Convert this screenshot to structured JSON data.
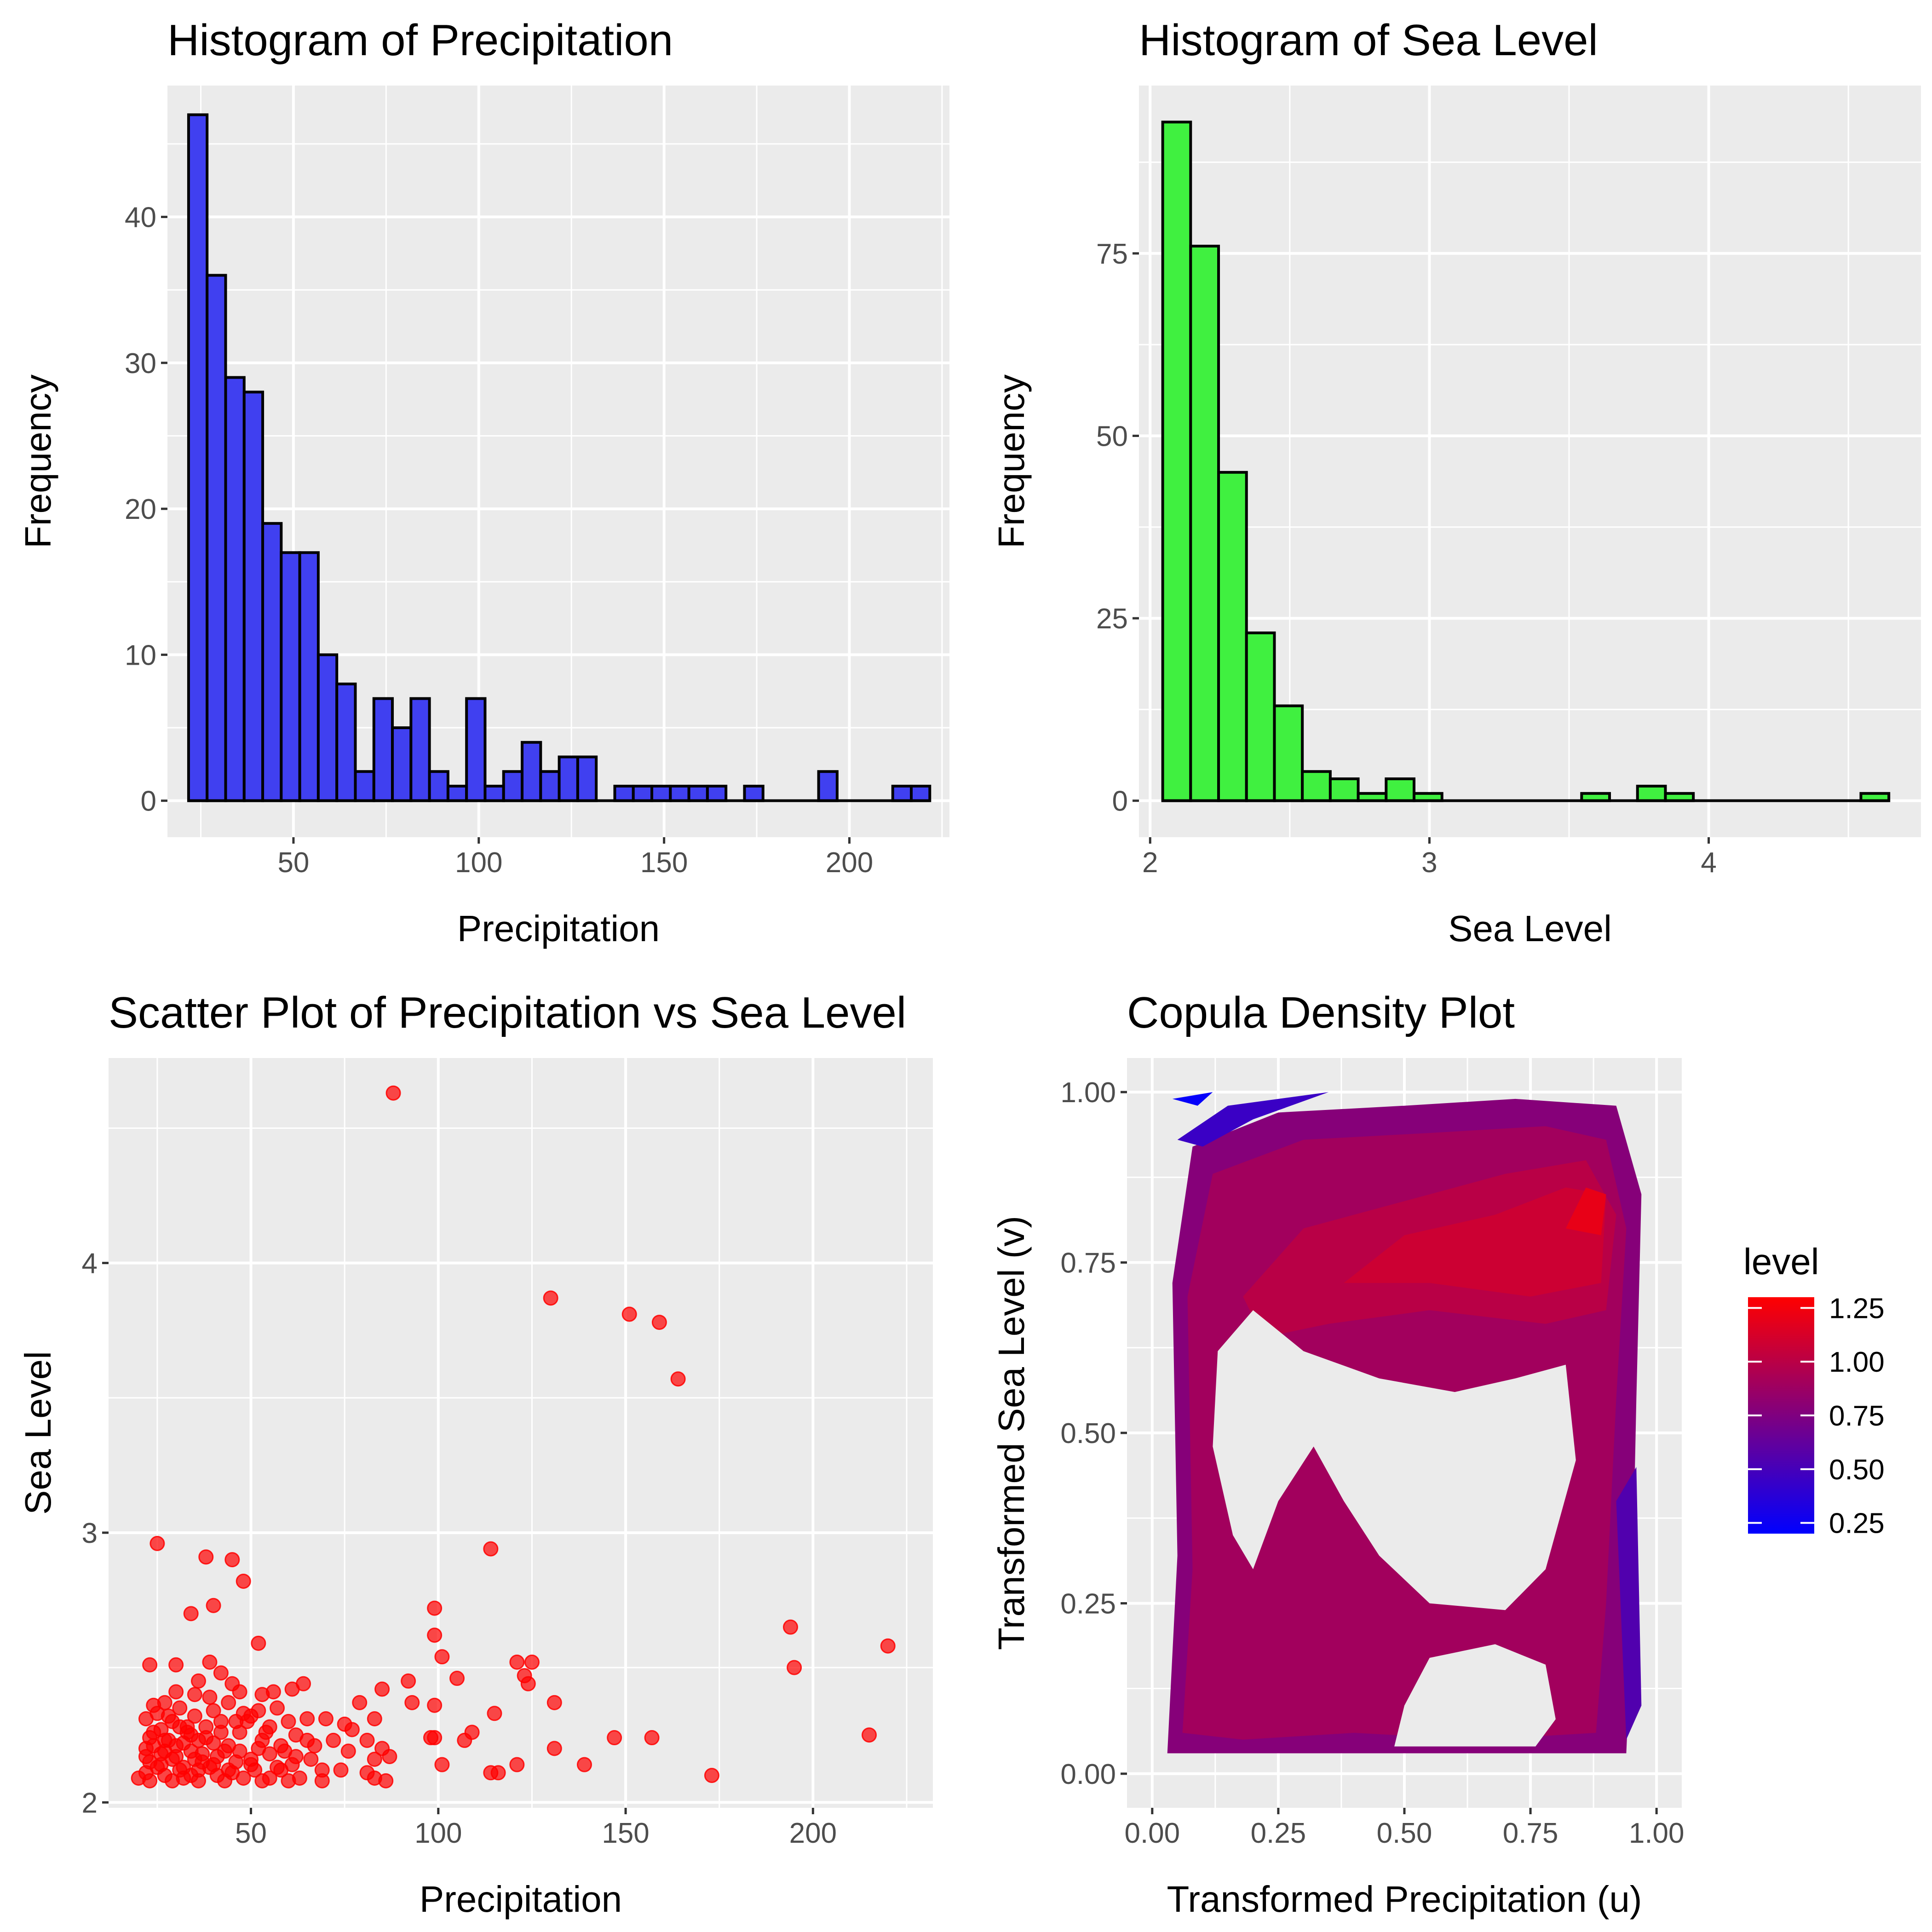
{
  "chart_data": [
    {
      "type": "bar",
      "title": "Histogram of Precipitation",
      "xlabel": "Precipitation",
      "ylabel": "Frequency",
      "fill": "#4040f0",
      "stroke": "#000000",
      "xlim": [
        16,
        227
      ],
      "ylim": [
        -2.5,
        49
      ],
      "x_ticks": [
        50,
        100,
        150,
        200
      ],
      "x_tick_labels": [
        "50",
        "100",
        "150",
        "200"
      ],
      "y_ticks": [
        0,
        10,
        20,
        30,
        40
      ],
      "y_tick_labels": [
        "0",
        "10",
        "20",
        "30",
        "40"
      ],
      "bin_start": 21.7,
      "bin_width": 5.0,
      "values": [
        47,
        36,
        29,
        28,
        19,
        17,
        17,
        10,
        8,
        2,
        7,
        5,
        7,
        2,
        1,
        7,
        1,
        2,
        4,
        2,
        3,
        3,
        0,
        1,
        1,
        1,
        1,
        1,
        1,
        0,
        1,
        0,
        0,
        0,
        2,
        0,
        0,
        0,
        1,
        1
      ]
    },
    {
      "type": "bar",
      "title": "Histogram of Sea Level",
      "xlabel": "Sea Level",
      "ylabel": "Frequency",
      "fill": "#40f040",
      "stroke": "#000000",
      "xlim": [
        1.96,
        4.76
      ],
      "ylim": [
        -5,
        98
      ],
      "x_ticks": [
        2,
        3,
        4
      ],
      "x_tick_labels": [
        "2",
        "3",
        "4"
      ],
      "y_ticks": [
        0,
        25,
        50,
        75
      ],
      "y_tick_labels": [
        "0",
        "25",
        "50",
        "75"
      ],
      "bin_start": 2.045,
      "bin_width": 0.1,
      "values": [
        93,
        76,
        45,
        23,
        13,
        4,
        3,
        1,
        3,
        1,
        0,
        0,
        0,
        0,
        0,
        1,
        0,
        2,
        1,
        0,
        0,
        0,
        0,
        0,
        0,
        1
      ]
    },
    {
      "type": "scatter",
      "title": "Scatter Plot of Precipitation vs Sea Level",
      "xlabel": "Precipitation",
      "ylabel": "Sea Level",
      "point_color": "#ff0000",
      "xlim": [
        12,
        232
      ],
      "ylim": [
        1.98,
        4.76
      ],
      "x_ticks": [
        50,
        100,
        150,
        200
      ],
      "x_tick_labels": [
        "50",
        "100",
        "150",
        "200"
      ],
      "y_ticks": [
        2,
        3,
        4
      ],
      "y_tick_labels": [
        "2",
        "3",
        "4"
      ],
      "points": [
        [
          88,
          4.63
        ],
        [
          130,
          3.87
        ],
        [
          151,
          3.81
        ],
        [
          159,
          3.78
        ],
        [
          164,
          3.57
        ],
        [
          25,
          2.96
        ],
        [
          114,
          2.94
        ],
        [
          38,
          2.91
        ],
        [
          45,
          2.9
        ],
        [
          48,
          2.82
        ],
        [
          40,
          2.73
        ],
        [
          99,
          2.72
        ],
        [
          34,
          2.7
        ],
        [
          194,
          2.65
        ],
        [
          99,
          2.62
        ],
        [
          220,
          2.58
        ],
        [
          52,
          2.59
        ],
        [
          101,
          2.54
        ],
        [
          23,
          2.51
        ],
        [
          30,
          2.51
        ],
        [
          39,
          2.52
        ],
        [
          121,
          2.52
        ],
        [
          125,
          2.52
        ],
        [
          195,
          2.5
        ],
        [
          42,
          2.48
        ],
        [
          123,
          2.47
        ],
        [
          92,
          2.45
        ],
        [
          105,
          2.46
        ],
        [
          36,
          2.45
        ],
        [
          45,
          2.44
        ],
        [
          64,
          2.44
        ],
        [
          124,
          2.44
        ],
        [
          85,
          2.42
        ],
        [
          30,
          2.41
        ],
        [
          47,
          2.41
        ],
        [
          56,
          2.41
        ],
        [
          61,
          2.42
        ],
        [
          35,
          2.4
        ],
        [
          39,
          2.39
        ],
        [
          53,
          2.4
        ],
        [
          24,
          2.36
        ],
        [
          27,
          2.37
        ],
        [
          44,
          2.37
        ],
        [
          79,
          2.37
        ],
        [
          93,
          2.37
        ],
        [
          131,
          2.37
        ],
        [
          99,
          2.36
        ],
        [
          57,
          2.35
        ],
        [
          25,
          2.33
        ],
        [
          31,
          2.35
        ],
        [
          40,
          2.34
        ],
        [
          48,
          2.33
        ],
        [
          52,
          2.34
        ],
        [
          115,
          2.33
        ],
        [
          35,
          2.32
        ],
        [
          50,
          2.32
        ],
        [
          65,
          2.31
        ],
        [
          70,
          2.31
        ],
        [
          83,
          2.31
        ],
        [
          22,
          2.31
        ],
        [
          29,
          2.3
        ],
        [
          42,
          2.3
        ],
        [
          46,
          2.3
        ],
        [
          60,
          2.3
        ],
        [
          75,
          2.29
        ],
        [
          31,
          2.28
        ],
        [
          38,
          2.28
        ],
        [
          55,
          2.28
        ],
        [
          77,
          2.27
        ],
        [
          109,
          2.26
        ],
        [
          26,
          2.27
        ],
        [
          33,
          2.26
        ],
        [
          47,
          2.26
        ],
        [
          62,
          2.25
        ],
        [
          98,
          2.24
        ],
        [
          99,
          2.24
        ],
        [
          147,
          2.24
        ],
        [
          157,
          2.24
        ],
        [
          215,
          2.25
        ],
        [
          23,
          2.24
        ],
        [
          28,
          2.23
        ],
        [
          36,
          2.23
        ],
        [
          53,
          2.23
        ],
        [
          72,
          2.23
        ],
        [
          81,
          2.23
        ],
        [
          107,
          2.23
        ],
        [
          40,
          2.22
        ],
        [
          24,
          2.21
        ],
        [
          32,
          2.22
        ],
        [
          44,
          2.21
        ],
        [
          58,
          2.21
        ],
        [
          67,
          2.21
        ],
        [
          85,
          2.2
        ],
        [
          131,
          2.2
        ],
        [
          27,
          2.19
        ],
        [
          34,
          2.19
        ],
        [
          47,
          2.19
        ],
        [
          52,
          2.2
        ],
        [
          59,
          2.19
        ],
        [
          76,
          2.19
        ],
        [
          87,
          2.17
        ],
        [
          22,
          2.17
        ],
        [
          30,
          2.17
        ],
        [
          41,
          2.17
        ],
        [
          55,
          2.18
        ],
        [
          66,
          2.16
        ],
        [
          83,
          2.16
        ],
        [
          23,
          2.15
        ],
        [
          29,
          2.16
        ],
        [
          37,
          2.15
        ],
        [
          46,
          2.15
        ],
        [
          50,
          2.14
        ],
        [
          61,
          2.14
        ],
        [
          101,
          2.14
        ],
        [
          121,
          2.14
        ],
        [
          139,
          2.14
        ],
        [
          25,
          2.13
        ],
        [
          32,
          2.13
        ],
        [
          39,
          2.13
        ],
        [
          44,
          2.12
        ],
        [
          51,
          2.12
        ],
        [
          58,
          2.12
        ],
        [
          69,
          2.12
        ],
        [
          74,
          2.12
        ],
        [
          81,
          2.11
        ],
        [
          114,
          2.11
        ],
        [
          116,
          2.11
        ],
        [
          173,
          2.1
        ],
        [
          22,
          2.11
        ],
        [
          27,
          2.1
        ],
        [
          34,
          2.1
        ],
        [
          41,
          2.1
        ],
        [
          48,
          2.09
        ],
        [
          55,
          2.09
        ],
        [
          63,
          2.09
        ],
        [
          83,
          2.09
        ],
        [
          23,
          2.08
        ],
        [
          29,
          2.08
        ],
        [
          36,
          2.08
        ],
        [
          43,
          2.08
        ],
        [
          53,
          2.08
        ],
        [
          60,
          2.08
        ],
        [
          69,
          2.08
        ],
        [
          86,
          2.08
        ],
        [
          31,
          2.12
        ],
        [
          26,
          2.14
        ],
        [
          35,
          2.16
        ],
        [
          43,
          2.19
        ],
        [
          38,
          2.24
        ],
        [
          28,
          2.32
        ],
        [
          33,
          2.28
        ],
        [
          24,
          2.26
        ],
        [
          37,
          2.18
        ],
        [
          45,
          2.11
        ],
        [
          40,
          2.14
        ],
        [
          30,
          2.21
        ],
        [
          26,
          2.18
        ],
        [
          34,
          2.25
        ],
        [
          50,
          2.16
        ],
        [
          57,
          2.13
        ],
        [
          65,
          2.23
        ],
        [
          20,
          2.09
        ],
        [
          22,
          2.2
        ],
        [
          27,
          2.23
        ],
        [
          32,
          2.09
        ],
        [
          36,
          2.12
        ],
        [
          42,
          2.26
        ],
        [
          49,
          2.3
        ],
        [
          54,
          2.26
        ],
        [
          62,
          2.17
        ]
      ]
    },
    {
      "type": "heatmap",
      "title": "Copula Density Plot",
      "xlabel": "Transformed Precipitation (u)",
      "ylabel": "Transformed Sea Level (v)",
      "xlim": [
        -0.05,
        1.05
      ],
      "ylim": [
        -0.05,
        1.05
      ],
      "x_ticks": [
        0,
        0.25,
        0.5,
        0.75,
        1
      ],
      "x_tick_labels": [
        "0.00",
        "0.25",
        "0.50",
        "0.75",
        "1.00"
      ],
      "y_ticks": [
        0,
        0.25,
        0.5,
        0.75,
        1
      ],
      "y_tick_labels": [
        "0.00",
        "0.25",
        "0.50",
        "0.75",
        "1.00"
      ],
      "legend": {
        "title": "level",
        "min": 0.2,
        "max": 1.3,
        "ticks": [
          0.25,
          0.5,
          0.75,
          1.0,
          1.25
        ],
        "tick_labels": [
          "0.25",
          "0.50",
          "0.75",
          "1.00",
          "1.25"
        ],
        "low_color": "#0000ff",
        "high_color": "#ff0000"
      },
      "gaps": [
        {
          "level": 0.7,
          "points": [
            [
              0.13,
              0.62
            ],
            [
              0.2,
              0.68
            ],
            [
              0.3,
              0.62
            ],
            [
              0.45,
              0.58
            ],
            [
              0.6,
              0.56
            ],
            [
              0.72,
              0.58
            ],
            [
              0.82,
              0.6
            ],
            [
              0.84,
              0.46
            ],
            [
              0.78,
              0.3
            ],
            [
              0.7,
              0.24
            ],
            [
              0.55,
              0.25
            ],
            [
              0.45,
              0.32
            ],
            [
              0.38,
              0.4
            ],
            [
              0.32,
              0.48
            ],
            [
              0.25,
              0.4
            ],
            [
              0.2,
              0.3
            ],
            [
              0.16,
              0.35
            ],
            [
              0.12,
              0.48
            ]
          ]
        },
        {
          "level": 0.7,
          "points": [
            [
              0.48,
              0.04
            ],
            [
              0.5,
              0.1
            ],
            [
              0.55,
              0.17
            ],
            [
              0.68,
              0.19
            ],
            [
              0.78,
              0.16
            ],
            [
              0.8,
              0.08
            ],
            [
              0.76,
              0.04
            ]
          ]
        }
      ],
      "regions": [
        {
          "level": 0.78,
          "points": [
            [
              0.03,
              0.03
            ],
            [
              0.05,
              0.32
            ],
            [
              0.04,
              0.72
            ],
            [
              0.08,
              0.92
            ],
            [
              0.25,
              0.97
            ],
            [
              0.5,
              0.98
            ],
            [
              0.72,
              0.99
            ],
            [
              0.92,
              0.98
            ],
            [
              0.97,
              0.85
            ],
            [
              0.96,
              0.55
            ],
            [
              0.95,
              0.2
            ],
            [
              0.94,
              0.03
            ],
            [
              0.7,
              0.03
            ],
            [
              0.45,
              0.03
            ],
            [
              0.2,
              0.03
            ]
          ]
        },
        {
          "level": 0.9,
          "points": [
            [
              0.06,
              0.06
            ],
            [
              0.08,
              0.3
            ],
            [
              0.07,
              0.7
            ],
            [
              0.12,
              0.88
            ],
            [
              0.3,
              0.93
            ],
            [
              0.55,
              0.94
            ],
            [
              0.78,
              0.95
            ],
            [
              0.9,
              0.93
            ],
            [
              0.94,
              0.8
            ],
            [
              0.92,
              0.55
            ],
            [
              0.9,
              0.25
            ],
            [
              0.88,
              0.06
            ],
            [
              0.65,
              0.05
            ],
            [
              0.4,
              0.06
            ],
            [
              0.18,
              0.05
            ]
          ]
        },
        {
          "level": 1.0,
          "points": [
            [
              0.18,
              0.7
            ],
            [
              0.3,
              0.8
            ],
            [
              0.5,
              0.84
            ],
            [
              0.7,
              0.88
            ],
            [
              0.86,
              0.9
            ],
            [
              0.92,
              0.82
            ],
            [
              0.9,
              0.68
            ],
            [
              0.78,
              0.66
            ],
            [
              0.55,
              0.68
            ],
            [
              0.35,
              0.66
            ],
            [
              0.22,
              0.64
            ]
          ]
        },
        {
          "level": 1.08,
          "points": [
            [
              0.38,
              0.72
            ],
            [
              0.5,
              0.79
            ],
            [
              0.68,
              0.82
            ],
            [
              0.82,
              0.86
            ],
            [
              0.9,
              0.85
            ],
            [
              0.89,
              0.72
            ],
            [
              0.75,
              0.7
            ],
            [
              0.55,
              0.72
            ]
          ]
        },
        {
          "level": 1.2,
          "points": [
            [
              0.82,
              0.8
            ],
            [
              0.86,
              0.86
            ],
            [
              0.9,
              0.85
            ],
            [
              0.89,
              0.79
            ]
          ]
        },
        {
          "level": 0.95,
          "points": [
            [
              0.55,
              0.06
            ],
            [
              0.6,
              0.12
            ],
            [
              0.68,
              0.15
            ],
            [
              0.75,
              0.12
            ],
            [
              0.76,
              0.06
            ],
            [
              0.7,
              0.05
            ],
            [
              0.6,
              0.05
            ]
          ]
        },
        {
          "level": 0.45,
          "points": [
            [
              0.05,
              0.93
            ],
            [
              0.15,
              0.98
            ],
            [
              0.35,
              1.0
            ],
            [
              0.2,
              0.96
            ],
            [
              0.1,
              0.92
            ]
          ]
        },
        {
          "level": 0.22,
          "points": [
            [
              0.04,
              0.99
            ],
            [
              0.12,
              1.0
            ],
            [
              0.09,
              0.98
            ]
          ]
        },
        {
          "level": 0.55,
          "points": [
            [
              0.92,
              0.4
            ],
            [
              0.96,
              0.45
            ],
            [
              0.97,
              0.1
            ],
            [
              0.94,
              0.05
            ]
          ]
        }
      ]
    }
  ]
}
